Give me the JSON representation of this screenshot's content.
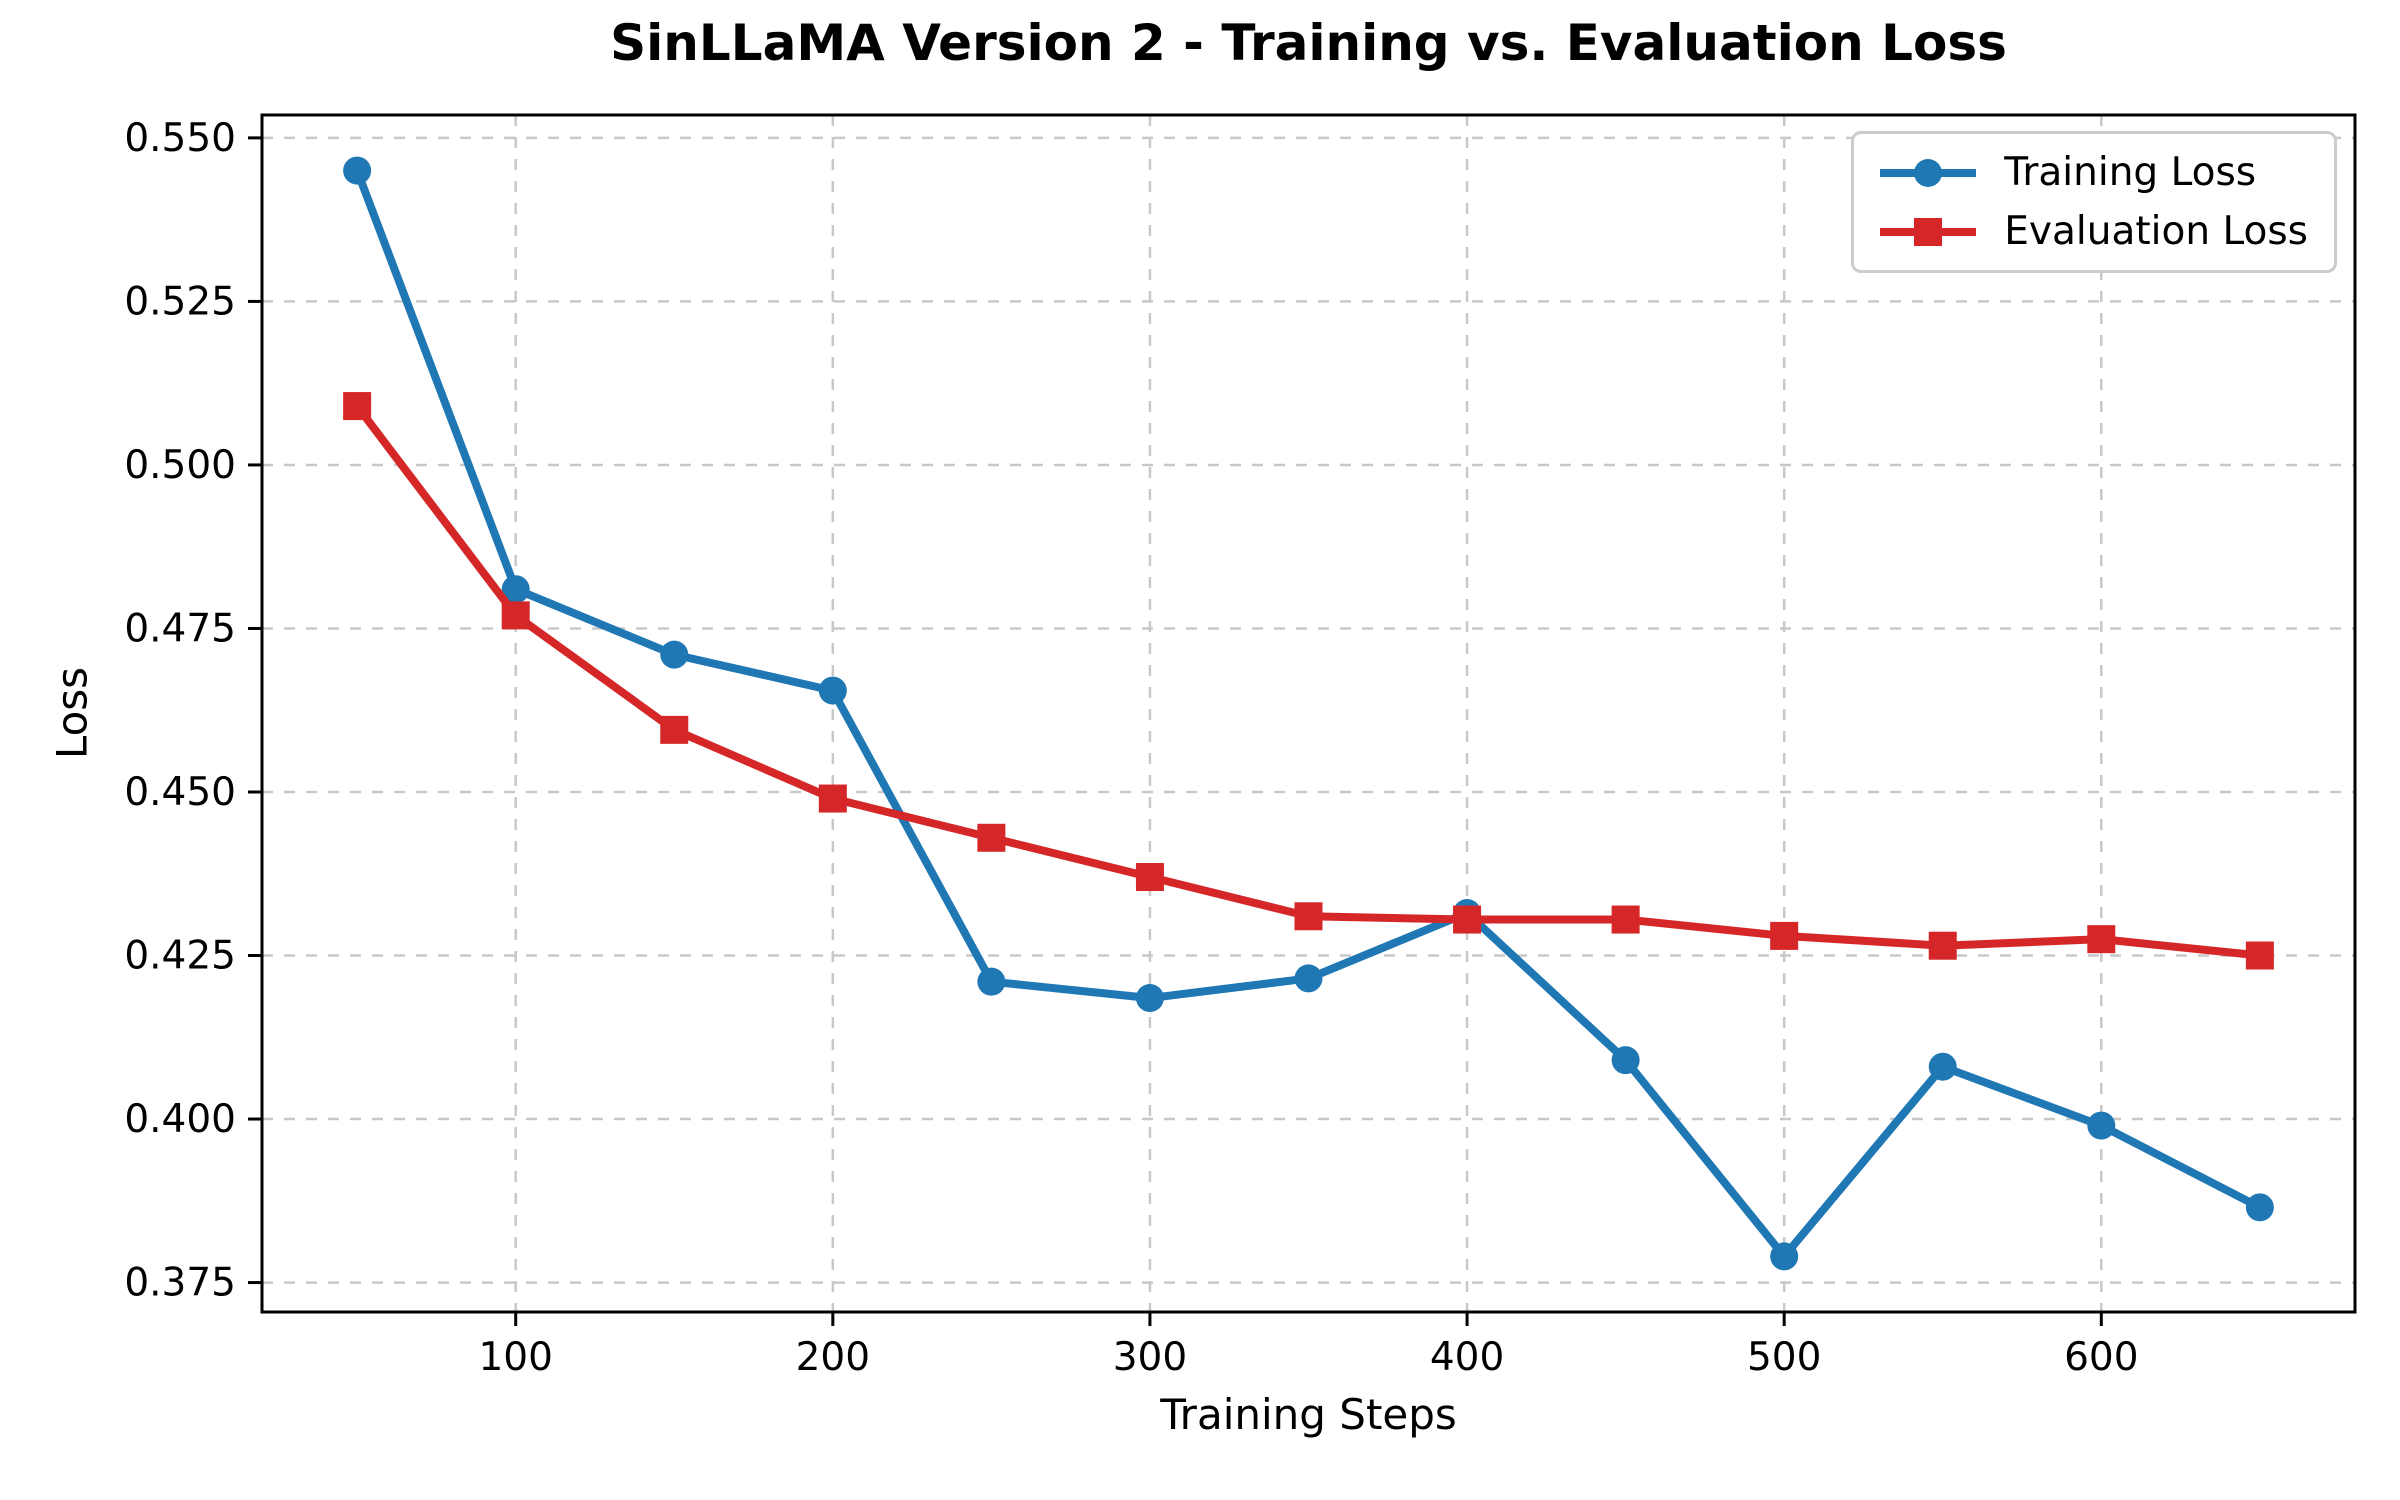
{
  "chart_data": {
    "type": "line",
    "title": "SinLLaMA Version 2 - Training vs. Evaluation Loss",
    "xlabel": "Training Steps",
    "ylabel": "Loss",
    "x": [
      50,
      100,
      150,
      200,
      250,
      300,
      350,
      400,
      450,
      500,
      550,
      600,
      650
    ],
    "series": [
      {
        "name": "Training Loss",
        "color": "#1f77b4",
        "marker": "circle",
        "values": [
          0.545,
          0.481,
          0.471,
          0.4655,
          0.421,
          0.4185,
          0.4215,
          0.4315,
          0.409,
          0.379,
          0.408,
          0.399,
          0.3865
        ]
      },
      {
        "name": "Evaluation Loss",
        "color": "#d62728",
        "marker": "square",
        "values": [
          0.509,
          0.477,
          0.4595,
          0.449,
          0.443,
          0.437,
          0.431,
          0.4305,
          0.4305,
          0.428,
          0.4265,
          0.4275,
          0.425
        ]
      }
    ],
    "xlim": [
      20,
      680
    ],
    "ylim": [
      0.3705,
      0.5535
    ],
    "xticks": {
      "values": [
        100,
        200,
        300,
        400,
        500,
        600
      ],
      "labels": [
        "100",
        "200",
        "300",
        "400",
        "500",
        "600"
      ]
    },
    "yticks": {
      "values": [
        0.375,
        0.4,
        0.425,
        0.45,
        0.475,
        0.5,
        0.525,
        0.55
      ],
      "labels": [
        "0.375",
        "0.400",
        "0.425",
        "0.450",
        "0.475",
        "0.500",
        "0.525",
        "0.550"
      ]
    },
    "grid": true,
    "grid_style": "dashed",
    "grid_color": "#c8c8c8",
    "axis_color": "#000000",
    "legend_position": "upper right"
  }
}
